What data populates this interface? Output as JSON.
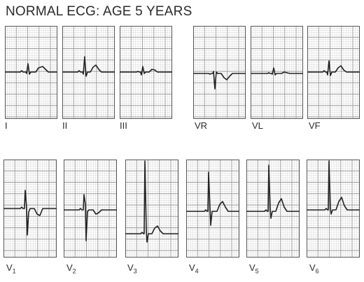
{
  "title": "NORMAL ECG: AGE 5 YEARS",
  "colors": {
    "grid_major": "#9a9a9a",
    "grid_minor": "#cfcfcf",
    "trace": "#222222",
    "text": "#2a2a2a"
  },
  "leads": [
    {
      "id": "I",
      "label": "I",
      "sub": ""
    },
    {
      "id": "II",
      "label": "II",
      "sub": ""
    },
    {
      "id": "III",
      "label": "III",
      "sub": ""
    },
    {
      "id": "VR",
      "label": "VR",
      "sub": ""
    },
    {
      "id": "VL",
      "label": "VL",
      "sub": ""
    },
    {
      "id": "VF",
      "label": "VF",
      "sub": ""
    },
    {
      "id": "V1",
      "label": "V",
      "sub": "1"
    },
    {
      "id": "V2",
      "label": "V",
      "sub": "2"
    },
    {
      "id": "V3",
      "label": "V",
      "sub": "3"
    },
    {
      "id": "V4",
      "label": "V",
      "sub": "4"
    },
    {
      "id": "V5",
      "label": "V",
      "sub": "5"
    },
    {
      "id": "V6",
      "label": "V",
      "sub": "6"
    }
  ]
}
